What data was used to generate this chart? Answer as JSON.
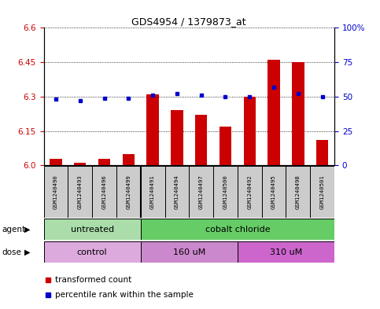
{
  "title": "GDS4954 / 1379873_at",
  "samples": [
    "GSM1240490",
    "GSM1240493",
    "GSM1240496",
    "GSM1240499",
    "GSM1240491",
    "GSM1240494",
    "GSM1240497",
    "GSM1240500",
    "GSM1240492",
    "GSM1240495",
    "GSM1240498",
    "GSM1240501"
  ],
  "transformed_count": [
    6.03,
    6.01,
    6.03,
    6.05,
    6.31,
    6.24,
    6.22,
    6.17,
    6.3,
    6.46,
    6.45,
    6.11
  ],
  "percentile_rank": [
    48,
    47,
    49,
    49,
    51,
    52,
    51,
    50,
    50,
    57,
    52,
    50
  ],
  "y_min": 6.0,
  "y_max": 6.6,
  "y_ticks": [
    6.0,
    6.15,
    6.3,
    6.45,
    6.6
  ],
  "y2_ticks": [
    0,
    25,
    50,
    75,
    100
  ],
  "agent_groups": [
    {
      "label": "untreated",
      "start": 0,
      "end": 4,
      "color": "#aaddaa"
    },
    {
      "label": "cobalt chloride",
      "start": 4,
      "end": 12,
      "color": "#66cc66"
    }
  ],
  "dose_groups": [
    {
      "label": "control",
      "start": 0,
      "end": 4,
      "color": "#ddaadd"
    },
    {
      "label": "160 uM",
      "start": 4,
      "end": 8,
      "color": "#cc88cc"
    },
    {
      "label": "310 uM",
      "start": 8,
      "end": 12,
      "color": "#cc66cc"
    }
  ],
  "bar_color": "#cc0000",
  "dot_color": "#0000cc",
  "tick_label_color_left": "#cc0000",
  "tick_label_color_right": "#0000cc",
  "sample_box_color": "#cccccc",
  "grid_color": "#000000"
}
